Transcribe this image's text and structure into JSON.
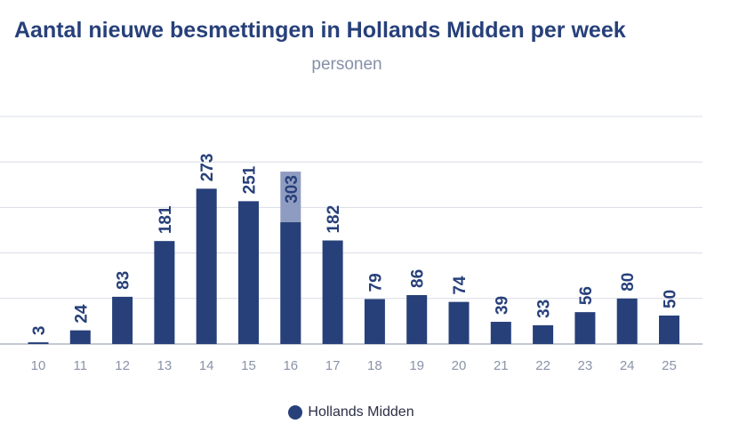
{
  "colors": {
    "primary": "#27407a",
    "highlight": "#8f9cc1",
    "grid": "#d9dce6",
    "axis": "#b0b5c3",
    "tick": "#8a93a8",
    "label": "#27407a"
  },
  "chart_data": {
    "type": "bar",
    "title": "Aantal nieuwe besmettingen in Hollands Midden per week",
    "subtitle": "personen",
    "categories": [
      "10",
      "11",
      "12",
      "13",
      "14",
      "15",
      "16",
      "17",
      "18",
      "19",
      "20",
      "21",
      "22",
      "23",
      "24",
      "25"
    ],
    "series": [
      {
        "name": "Hollands Midden",
        "values": [
          3,
          24,
          83,
          181,
          273,
          251,
          303,
          182,
          79,
          86,
          74,
          39,
          33,
          56,
          80,
          50
        ]
      }
    ],
    "stacked_overlay": {
      "category": "16",
      "dark_value": 214,
      "total_value": 303
    },
    "ylim": [
      0,
      400
    ],
    "y_gridlines": [
      0,
      80,
      160,
      240,
      320,
      400
    ],
    "y_tick_labels_shown": false,
    "grid": true,
    "legend": "bottom-center",
    "data_labels": true,
    "data_label_rotation": -90
  }
}
